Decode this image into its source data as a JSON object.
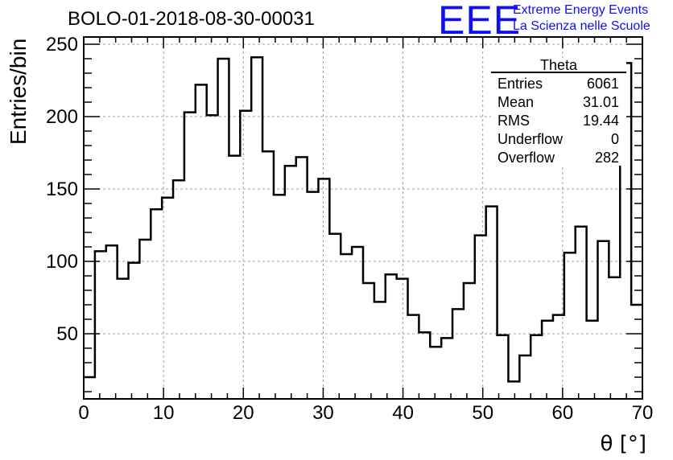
{
  "header": {
    "title": "BOLO-01-2018-08-30-00031",
    "logo_text": "EEE",
    "logo_line1": "Extreme Energy Events",
    "logo_line2": "La Scienza nelle Scuole",
    "logo_color": "#1010ee"
  },
  "stats": {
    "name": "Theta",
    "rows": [
      {
        "label": "Entries",
        "value": "6061"
      },
      {
        "label": "Mean",
        "value": "31.01"
      },
      {
        "label": "RMS",
        "value": "19.44"
      },
      {
        "label": "Underflow",
        "value": "0"
      },
      {
        "label": "Overflow",
        "value": "282"
      }
    ]
  },
  "chart_data": {
    "type": "bar",
    "style": "histogram-step",
    "xlabel": "θ [°]",
    "ylabel": "Entries/bin",
    "xlim": [
      0,
      70
    ],
    "ylim": [
      5,
      255
    ],
    "bin_width": 1.4,
    "xticks": [
      "0",
      "10",
      "20",
      "30",
      "40",
      "50",
      "60",
      "70"
    ],
    "yticks": [
      "50",
      "100",
      "150",
      "200",
      "250"
    ],
    "grid": true,
    "legend": "top-right",
    "values": [
      20,
      107,
      111,
      88,
      99,
      115,
      136,
      144,
      156,
      203,
      222,
      201,
      240,
      173,
      204,
      241,
      176,
      146,
      166,
      172,
      148,
      157,
      119,
      105,
      110,
      85,
      72,
      91,
      88,
      63,
      51,
      41,
      47,
      67,
      85,
      118,
      138,
      49,
      17,
      35,
      49,
      59,
      63,
      106,
      124,
      59,
      114,
      89,
      237,
      70
    ]
  }
}
